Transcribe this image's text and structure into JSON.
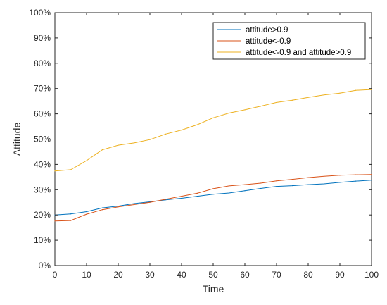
{
  "chart_data": {
    "type": "line",
    "title": "",
    "xlabel": "Time",
    "ylabel": "Attitude",
    "xlim": [
      0,
      100
    ],
    "ylim": [
      0,
      100
    ],
    "xticks": [
      "0",
      "10",
      "20",
      "30",
      "40",
      "50",
      "60",
      "70",
      "80",
      "90",
      "100"
    ],
    "yticks": [
      "0%",
      "10%",
      "20%",
      "30%",
      "40%",
      "50%",
      "60%",
      "70%",
      "80%",
      "90%",
      "100%"
    ],
    "grid": false,
    "legend_position": "top-right",
    "series": [
      {
        "name": "attitude>0.9",
        "color": "#0072BD",
        "x": [
          0,
          5,
          10,
          15,
          20,
          25,
          30,
          35,
          40,
          45,
          50,
          55,
          60,
          65,
          70,
          75,
          80,
          85,
          90,
          95,
          100
        ],
        "values": [
          20,
          20.4,
          21.3,
          22.8,
          23.5,
          24.5,
          25.2,
          26,
          26.6,
          27.4,
          28.2,
          28.7,
          29.6,
          30.5,
          31.3,
          31.6,
          32,
          32.3,
          32.9,
          33.4,
          33.8
        ]
      },
      {
        "name": "attitude<-0.9",
        "color": "#D95319",
        "x": [
          0,
          5,
          10,
          15,
          20,
          25,
          30,
          35,
          40,
          45,
          50,
          55,
          60,
          65,
          70,
          75,
          80,
          85,
          90,
          95,
          100
        ],
        "values": [
          17.6,
          17.8,
          20.3,
          22.1,
          23.2,
          24.1,
          25,
          26.2,
          27.4,
          28.6,
          30.4,
          31.5,
          32,
          32.6,
          33.5,
          34.1,
          34.8,
          35.3,
          35.7,
          35.9,
          36
        ]
      },
      {
        "name": "attitude<-0.9 and attitude>0.9",
        "color": "#EDB120",
        "x": [
          0,
          5,
          10,
          15,
          20,
          25,
          30,
          35,
          40,
          45,
          50,
          55,
          60,
          65,
          70,
          75,
          80,
          85,
          90,
          95,
          100
        ],
        "values": [
          37.4,
          37.9,
          41.5,
          45.8,
          47.6,
          48.5,
          49.8,
          52,
          53.6,
          55.7,
          58.4,
          60.3,
          61.6,
          63,
          64.5,
          65.4,
          66.5,
          67.5,
          68.2,
          69.3,
          69.6
        ]
      }
    ]
  }
}
